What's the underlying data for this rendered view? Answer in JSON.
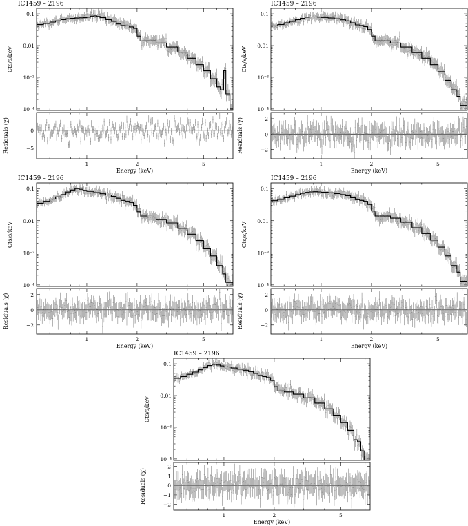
{
  "chart_data": [
    {
      "type": "scatter",
      "title": "IC1459 – 2196",
      "xlabel": "Energy (keV)",
      "ylabel": "Cts/s/keV",
      "residual_label": "Residuals (χ)",
      "xlim": [
        0.5,
        7.5
      ],
      "ylim": [
        9e-05,
        0.15
      ],
      "xscale": "log",
      "yscale": "log",
      "x_ticks": [
        1,
        2,
        5
      ],
      "y_ticks": [
        0.0001,
        0.001,
        0.01,
        0.1
      ],
      "y_tick_labels": [
        "10⁻⁴",
        "10⁻³",
        "0.01",
        "0.1"
      ],
      "res_lim": [
        -8,
        5
      ],
      "res_ticks": [
        -5,
        0
      ],
      "res_tick_labels": [
        "−5",
        "0"
      ],
      "grid": false,
      "model_steps": [
        [
          0.5,
          0.046
        ],
        [
          0.55,
          0.05
        ],
        [
          0.6,
          0.055
        ],
        [
          0.65,
          0.06
        ],
        [
          0.7,
          0.066
        ],
        [
          0.75,
          0.07
        ],
        [
          0.8,
          0.072
        ],
        [
          0.85,
          0.074
        ],
        [
          0.9,
          0.075
        ],
        [
          0.95,
          0.076
        ],
        [
          1.0,
          0.079
        ],
        [
          1.05,
          0.085
        ],
        [
          1.1,
          0.087
        ],
        [
          1.15,
          0.083
        ],
        [
          1.2,
          0.076
        ],
        [
          1.3,
          0.066
        ],
        [
          1.4,
          0.058
        ],
        [
          1.5,
          0.048
        ],
        [
          1.6,
          0.043
        ],
        [
          1.7,
          0.042
        ],
        [
          1.8,
          0.039
        ],
        [
          1.9,
          0.035
        ],
        [
          2.0,
          0.02
        ],
        [
          2.1,
          0.014
        ],
        [
          2.3,
          0.014
        ],
        [
          2.6,
          0.012
        ],
        [
          3.0,
          0.009
        ],
        [
          3.5,
          0.0062
        ],
        [
          4.0,
          0.004
        ],
        [
          4.5,
          0.0025
        ],
        [
          5.0,
          0.0016
        ],
        [
          5.5,
          0.0009
        ],
        [
          6.0,
          0.0005
        ],
        [
          6.3,
          0.0004
        ],
        [
          6.6,
          0.0016
        ],
        [
          6.8,
          0.0003
        ],
        [
          7.2,
          0.0001
        ],
        [
          7.5,
          0.0001
        ]
      ]
    },
    {
      "type": "scatter",
      "title": "IC1459 – 2196",
      "xlabel": "Energy (keV)",
      "ylabel": "Cts/s/keV",
      "residual_label": "Residuals (χ)",
      "xlim": [
        0.5,
        7.5
      ],
      "ylim": [
        9e-05,
        0.15
      ],
      "xscale": "log",
      "yscale": "log",
      "x_ticks": [
        1,
        2,
        5
      ],
      "y_ticks": [
        0.0001,
        0.001,
        0.01,
        0.1
      ],
      "y_tick_labels": [
        "10⁻⁴",
        "10⁻³",
        "0.01",
        "0.1"
      ],
      "res_lim": [
        -3.2,
        2.8
      ],
      "res_ticks": [
        -2,
        0,
        2
      ],
      "res_tick_labels": [
        "−2",
        "0",
        "2"
      ],
      "grid": false,
      "model_steps": [
        [
          0.5,
          0.042
        ],
        [
          0.55,
          0.046
        ],
        [
          0.6,
          0.052
        ],
        [
          0.65,
          0.058
        ],
        [
          0.7,
          0.066
        ],
        [
          0.75,
          0.072
        ],
        [
          0.8,
          0.078
        ],
        [
          0.85,
          0.08
        ],
        [
          0.9,
          0.08
        ],
        [
          0.95,
          0.079
        ],
        [
          1.0,
          0.077
        ],
        [
          1.1,
          0.074
        ],
        [
          1.2,
          0.07
        ],
        [
          1.3,
          0.065
        ],
        [
          1.4,
          0.06
        ],
        [
          1.5,
          0.052
        ],
        [
          1.6,
          0.045
        ],
        [
          1.7,
          0.043
        ],
        [
          1.8,
          0.04
        ],
        [
          1.9,
          0.032
        ],
        [
          2.0,
          0.02
        ],
        [
          2.1,
          0.014
        ],
        [
          2.3,
          0.014
        ],
        [
          2.6,
          0.012
        ],
        [
          3.0,
          0.009
        ],
        [
          3.5,
          0.006
        ],
        [
          4.0,
          0.004
        ],
        [
          4.5,
          0.0025
        ],
        [
          5.0,
          0.0015
        ],
        [
          5.5,
          0.0008
        ],
        [
          6.0,
          0.0004
        ],
        [
          6.5,
          0.00025
        ],
        [
          6.8,
          0.00013
        ],
        [
          7.5,
          0.0001
        ]
      ]
    },
    {
      "type": "scatter",
      "title": "IC1459 – 2196",
      "xlabel": "Energy (keV)",
      "ylabel": "Cts/s/keV",
      "residual_label": "Residuals (χ)",
      "xlim": [
        0.5,
        7.5
      ],
      "ylim": [
        9e-05,
        0.15
      ],
      "xscale": "log",
      "yscale": "log",
      "x_ticks": [
        1,
        2,
        5
      ],
      "y_ticks": [
        0.0001,
        0.001,
        0.01,
        0.1
      ],
      "y_tick_labels": [
        "10⁻⁴",
        "10⁻³",
        "0.01",
        "0.1"
      ],
      "res_lim": [
        -3.2,
        2.8
      ],
      "res_ticks": [
        -2,
        0,
        2
      ],
      "res_tick_labels": [
        "−2",
        "0",
        "2"
      ],
      "grid": false,
      "model_steps": [
        [
          0.5,
          0.035
        ],
        [
          0.55,
          0.04
        ],
        [
          0.6,
          0.047
        ],
        [
          0.65,
          0.055
        ],
        [
          0.7,
          0.065
        ],
        [
          0.75,
          0.078
        ],
        [
          0.8,
          0.09
        ],
        [
          0.85,
          0.1
        ],
        [
          0.9,
          0.095
        ],
        [
          0.95,
          0.088
        ],
        [
          1.0,
          0.082
        ],
        [
          1.1,
          0.075
        ],
        [
          1.2,
          0.069
        ],
        [
          1.3,
          0.063
        ],
        [
          1.4,
          0.057
        ],
        [
          1.5,
          0.05
        ],
        [
          1.6,
          0.043
        ],
        [
          1.7,
          0.04
        ],
        [
          1.8,
          0.037
        ],
        [
          1.9,
          0.03
        ],
        [
          2.0,
          0.019
        ],
        [
          2.1,
          0.014
        ],
        [
          2.3,
          0.013
        ],
        [
          2.6,
          0.011
        ],
        [
          3.0,
          0.0085
        ],
        [
          3.5,
          0.0058
        ],
        [
          4.0,
          0.0038
        ],
        [
          4.5,
          0.0024
        ],
        [
          5.0,
          0.0014
        ],
        [
          5.5,
          0.0008
        ],
        [
          6.0,
          0.0004
        ],
        [
          6.5,
          0.00022
        ],
        [
          6.8,
          0.00012
        ],
        [
          7.5,
          0.0001
        ]
      ]
    },
    {
      "type": "scatter",
      "title": "IC1459 – 2196",
      "xlabel": "Energy (keV)",
      "ylabel": "Cts/s/keV",
      "residual_label": "Residuals (χ)",
      "xlim": [
        0.5,
        7.5
      ],
      "ylim": [
        9e-05,
        0.15
      ],
      "xscale": "log",
      "yscale": "log",
      "x_ticks": [
        1,
        2,
        5
      ],
      "y_ticks": [
        0.0001,
        0.001,
        0.01,
        0.1
      ],
      "y_tick_labels": [
        "10⁻⁴",
        "10⁻³",
        "0.01",
        "0.1"
      ],
      "res_lim": [
        -3.2,
        2.8
      ],
      "res_ticks": [
        -2,
        0,
        2
      ],
      "res_tick_labels": [
        "−2",
        "0",
        "2"
      ],
      "grid": false,
      "model_steps": [
        [
          0.5,
          0.042
        ],
        [
          0.55,
          0.046
        ],
        [
          0.6,
          0.052
        ],
        [
          0.65,
          0.058
        ],
        [
          0.7,
          0.065
        ],
        [
          0.75,
          0.071
        ],
        [
          0.8,
          0.076
        ],
        [
          0.85,
          0.079
        ],
        [
          0.9,
          0.08
        ],
        [
          0.95,
          0.079
        ],
        [
          1.0,
          0.077
        ],
        [
          1.1,
          0.074
        ],
        [
          1.2,
          0.07
        ],
        [
          1.3,
          0.065
        ],
        [
          1.4,
          0.06
        ],
        [
          1.5,
          0.052
        ],
        [
          1.6,
          0.045
        ],
        [
          1.7,
          0.043
        ],
        [
          1.8,
          0.04
        ],
        [
          1.9,
          0.032
        ],
        [
          2.0,
          0.02
        ],
        [
          2.1,
          0.014
        ],
        [
          2.3,
          0.014
        ],
        [
          2.6,
          0.012
        ],
        [
          3.0,
          0.009
        ],
        [
          3.5,
          0.006
        ],
        [
          4.0,
          0.004
        ],
        [
          4.5,
          0.0025
        ],
        [
          5.0,
          0.0015
        ],
        [
          5.5,
          0.0008
        ],
        [
          6.0,
          0.0004
        ],
        [
          6.5,
          0.00025
        ],
        [
          6.8,
          0.00013
        ],
        [
          7.5,
          0.0001
        ]
      ]
    },
    {
      "type": "scatter",
      "title": "IC1459 – 2196",
      "xlabel": "Energy (keV)",
      "ylabel": "Cts/s/keV",
      "residual_label": "Residuals (χ)",
      "xlim": [
        0.5,
        7.5
      ],
      "ylim": [
        9e-05,
        0.15
      ],
      "xscale": "log",
      "yscale": "log",
      "x_ticks": [
        1,
        2,
        5
      ],
      "y_ticks": [
        0.0001,
        0.001,
        0.01,
        0.1
      ],
      "y_tick_labels": [
        "10⁻⁴",
        "10⁻³",
        "0.01",
        "0.1"
      ],
      "res_lim": [
        -2.6,
        2.4
      ],
      "res_ticks": [
        -2,
        -1,
        0,
        1,
        2
      ],
      "res_tick_labels": [
        "−2",
        "−1",
        "0",
        "1",
        "2"
      ],
      "grid": false,
      "model_steps": [
        [
          0.5,
          0.035
        ],
        [
          0.55,
          0.04
        ],
        [
          0.6,
          0.047
        ],
        [
          0.65,
          0.055
        ],
        [
          0.7,
          0.065
        ],
        [
          0.75,
          0.077
        ],
        [
          0.8,
          0.088
        ],
        [
          0.85,
          0.096
        ],
        [
          0.9,
          0.092
        ],
        [
          0.95,
          0.086
        ],
        [
          1.0,
          0.08
        ],
        [
          1.1,
          0.074
        ],
        [
          1.2,
          0.068
        ],
        [
          1.3,
          0.063
        ],
        [
          1.4,
          0.057
        ],
        [
          1.5,
          0.05
        ],
        [
          1.6,
          0.043
        ],
        [
          1.7,
          0.04
        ],
        [
          1.8,
          0.037
        ],
        [
          1.9,
          0.03
        ],
        [
          2.0,
          0.019
        ],
        [
          2.1,
          0.014
        ],
        [
          2.3,
          0.013
        ],
        [
          2.6,
          0.011
        ],
        [
          3.0,
          0.0085
        ],
        [
          3.5,
          0.0058
        ],
        [
          4.0,
          0.0038
        ],
        [
          4.5,
          0.0024
        ],
        [
          5.0,
          0.0014
        ],
        [
          5.5,
          0.0008
        ],
        [
          6.0,
          0.0004
        ],
        [
          6.3,
          0.00035
        ],
        [
          6.6,
          0.00018
        ],
        [
          6.9,
          9e-05
        ],
        [
          7.5,
          9e-05
        ]
      ]
    }
  ]
}
